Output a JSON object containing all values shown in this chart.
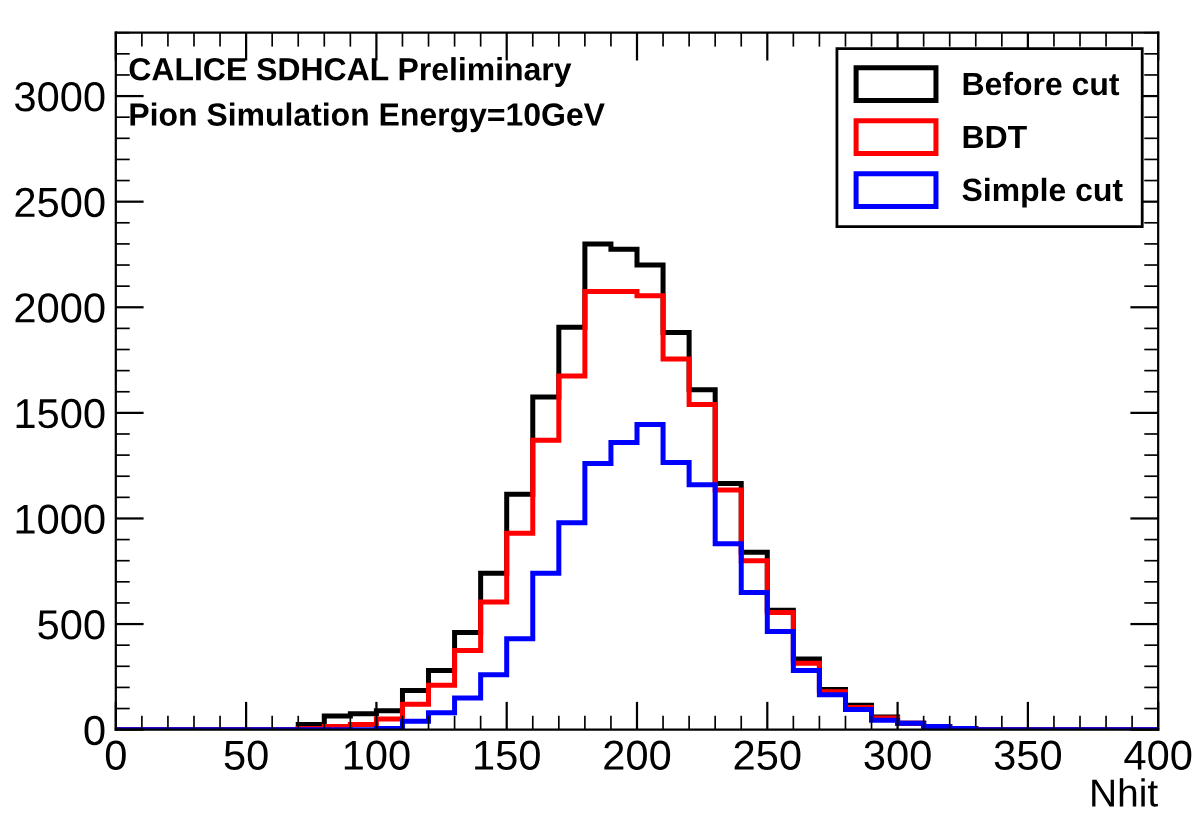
{
  "chart_data": {
    "type": "histogram",
    "xlabel": "Nhit",
    "annotations": [
      "CALICE SDHCAL Preliminary",
      "Pion Simulation Energy=10GeV"
    ],
    "bins": [
      0,
      10,
      20,
      30,
      40,
      50,
      60,
      70,
      80,
      90,
      100,
      110,
      120,
      130,
      140,
      150,
      160,
      170,
      180,
      190,
      200,
      210,
      220,
      230,
      240,
      250,
      260,
      270,
      280,
      290,
      300,
      310,
      320,
      330,
      340,
      350,
      360,
      370,
      380,
      390,
      400
    ],
    "series": [
      {
        "name": "Before cut",
        "color": "#000000",
        "values": [
          0,
          0,
          0,
          0,
          0,
          0,
          0,
          25,
          65,
          75,
          90,
          185,
          280,
          460,
          740,
          1115,
          1575,
          1905,
          2300,
          2275,
          2200,
          1880,
          1610,
          1165,
          840,
          565,
          335,
          190,
          115,
          60,
          30,
          15,
          5,
          0,
          0,
          0,
          0,
          0,
          0,
          0
        ]
      },
      {
        "name": "BDT",
        "color": "#ff0000",
        "values": [
          0,
          0,
          0,
          0,
          0,
          0,
          0,
          5,
          15,
          25,
          50,
          120,
          210,
          375,
          605,
          930,
          1370,
          1675,
          2075,
          2075,
          2055,
          1755,
          1540,
          1135,
          800,
          555,
          315,
          180,
          105,
          55,
          30,
          15,
          5,
          0,
          0,
          0,
          0,
          0,
          0,
          0
        ]
      },
      {
        "name": "Simple cut",
        "color": "#0000ff",
        "values": [
          0,
          0,
          0,
          0,
          0,
          0,
          0,
          0,
          0,
          0,
          5,
          40,
          80,
          150,
          260,
          430,
          740,
          980,
          1260,
          1360,
          1445,
          1265,
          1160,
          880,
          650,
          465,
          280,
          165,
          95,
          45,
          30,
          15,
          5,
          0,
          0,
          0,
          0,
          0,
          0,
          0
        ]
      }
    ],
    "xlim": [
      0,
      400
    ],
    "xticks": [
      0,
      50,
      100,
      150,
      200,
      250,
      300,
      350,
      400
    ],
    "ylim": [
      0,
      3300
    ],
    "yticks": [
      0,
      500,
      1000,
      1500,
      2000,
      2500,
      3000
    ],
    "grid": false,
    "legend": "top right"
  }
}
